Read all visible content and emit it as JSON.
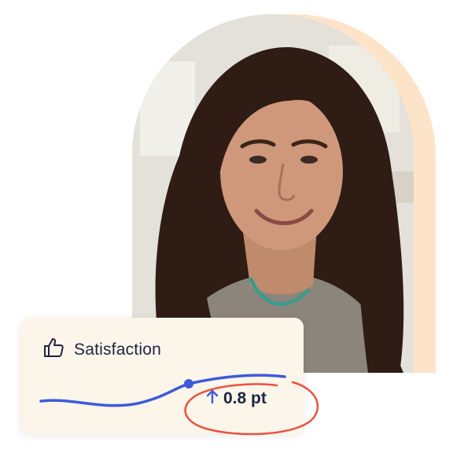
{
  "card": {
    "title": "Satisfaction",
    "metric_value": "0.8 pt",
    "trend": "up"
  },
  "icons": {
    "title_icon": "thumbs-up-icon",
    "trend_icon": "arrow-up-icon"
  },
  "colors": {
    "accent_arch": "#fde3c7",
    "card_background": "#fbf5ea",
    "trend_line": "#3d5bd9",
    "highlight_circle": "#e8533f",
    "text": "#1f2340"
  }
}
